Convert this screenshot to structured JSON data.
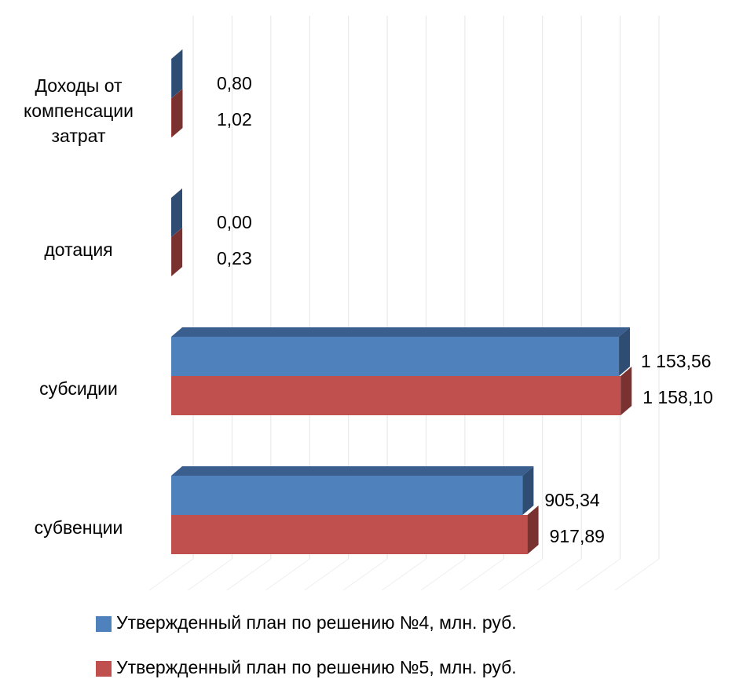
{
  "chart_data": {
    "type": "bar3d_horizontal",
    "categories": [
      "Доходы от компенсации затрат",
      "дотация",
      "субсидии",
      "субвенции"
    ],
    "series": [
      {
        "name": "Утвержденный план по решению №4, млн. руб.",
        "color": "#4f81bd",
        "values": [
          0.8,
          0.0,
          1153.56,
          905.34
        ],
        "value_labels": [
          "0,80",
          "0,00",
          "1 153,56",
          "905,34"
        ]
      },
      {
        "name": "Утвержденный план по решению №5, млн. руб.",
        "color": "#c0504d",
        "values": [
          1.02,
          0.23,
          1158.1,
          917.89
        ],
        "value_labels": [
          "1,02",
          "0,23",
          "1 158,10",
          "917,89"
        ]
      }
    ],
    "xlim": [
      0,
      1200
    ],
    "xticks": [
      0,
      100,
      200,
      300,
      400,
      500,
      600,
      700,
      800,
      900,
      1000,
      1100,
      1200
    ],
    "grid": true
  }
}
